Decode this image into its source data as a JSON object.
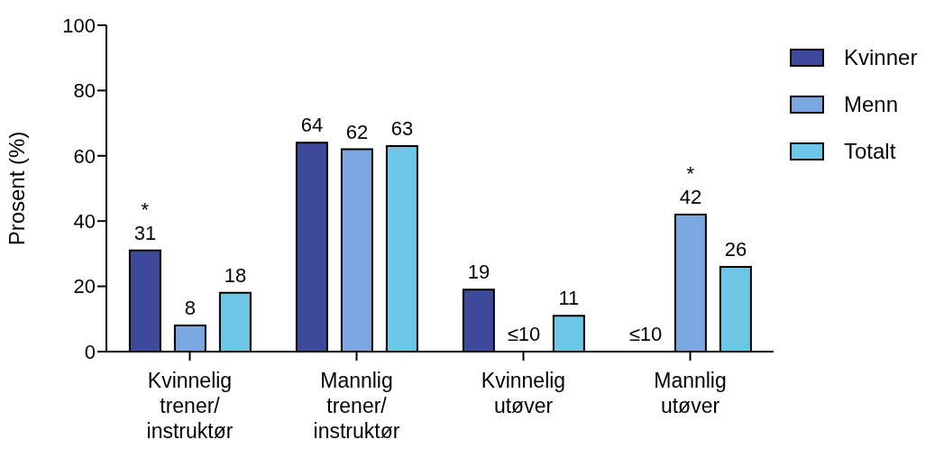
{
  "chart_data": {
    "type": "bar",
    "categories": [
      "Kvinnelig\ntrener/\ninstruktør",
      "Mannlig\ntrener/\ninstruktør",
      "Kvinnelig\nutøver",
      "Mannlig\nutøver"
    ],
    "series": [
      {
        "name": "Kvinner",
        "color": "#3d4a9c",
        "values": [
          31,
          64,
          19,
          null
        ],
        "value_labels": [
          "*\n31",
          "64",
          "19",
          "≤10"
        ]
      },
      {
        "name": "Menn",
        "color": "#7aa7e0",
        "values": [
          8,
          62,
          null,
          42
        ],
        "value_labels": [
          "8",
          "62",
          "≤10",
          "*\n42"
        ]
      },
      {
        "name": "Totalt",
        "color": "#6ec6e6",
        "values": [
          18,
          63,
          11,
          26
        ],
        "value_labels": [
          "18",
          "63",
          "11",
          "26"
        ]
      }
    ],
    "ylabel": "Prosent (%)",
    "ylim": [
      0,
      100
    ],
    "yticks": [
      0,
      20,
      40,
      60,
      80,
      100
    ],
    "legend": "top right",
    "grid": false
  }
}
